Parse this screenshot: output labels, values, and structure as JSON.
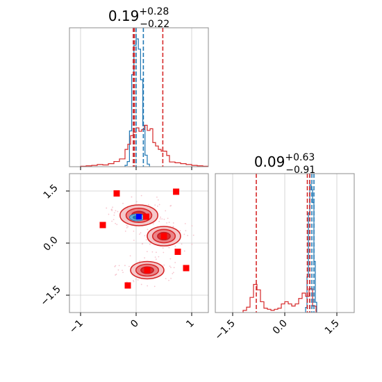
{
  "chart_data": [
    {
      "type": "histogram",
      "panel": "top-left",
      "title_main": "0.19",
      "title_sup": "+0.28",
      "title_sub": "−0.22",
      "xlim": [
        -1.2,
        1.3
      ],
      "xticks": [
        -1,
        0,
        1
      ],
      "grid": true,
      "series": [
        {
          "color": "#1f77b4",
          "bins": [
            -0.2,
            -0.16,
            -0.12,
            -0.08,
            -0.04,
            0.0,
            0.04,
            0.08,
            0.12,
            0.16,
            0.2,
            0.24
          ],
          "counts": [
            1,
            4,
            28,
            72,
            95,
            100,
            92,
            68,
            32,
            9,
            2
          ],
          "quantiles": [
            -0.05,
            0.0,
            0.13
          ]
        },
        {
          "color": "#d62728",
          "bins": [
            -1.0,
            -0.9,
            -0.8,
            -0.7,
            -0.6,
            -0.5,
            -0.4,
            -0.3,
            -0.2,
            -0.15,
            -0.1,
            -0.05,
            0.0,
            0.05,
            0.1,
            0.15,
            0.2,
            0.25,
            0.3,
            0.35,
            0.4,
            0.45,
            0.5,
            0.55,
            0.6,
            0.7,
            0.8,
            0.9,
            1.0,
            1.1,
            1.2,
            1.3
          ],
          "counts": [
            1,
            2,
            3,
            5,
            4,
            7,
            12,
            18,
            20,
            26,
            36,
            40,
            45,
            41,
            43,
            48,
            42,
            44,
            28,
            24,
            20,
            18,
            18,
            13,
            11,
            9,
            7,
            5,
            3,
            2,
            1
          ],
          "quantiles": [
            -0.03,
            -0.05,
            0.48
          ]
        }
      ]
    },
    {
      "type": "histogram",
      "panel": "bottom-right",
      "title_main": "0.09",
      "title_sup": "+0.63",
      "title_sub": "−0.91",
      "xlim": [
        -2.0,
        2.0
      ],
      "xticks": [
        -1.5,
        0.0,
        1.5
      ],
      "xtick_labels": [
        "−1.5",
        "0.0",
        "1.5"
      ],
      "grid": true,
      "series": [
        {
          "color": "#1f77b4",
          "bins": [
            0.6,
            0.64,
            0.68,
            0.72,
            0.76,
            0.8,
            0.84,
            0.88,
            0.92
          ],
          "counts": [
            4,
            28,
            78,
            100,
            96,
            86,
            40,
            8
          ],
          "quantiles": [
            0.72,
            0.78,
            0.84
          ]
        },
        {
          "color": "#d62728",
          "bins": [
            -1.2,
            -1.1,
            -1.0,
            -0.9,
            -0.8,
            -0.7,
            -0.6,
            -0.5,
            -0.4,
            -0.3,
            -0.2,
            -0.1,
            0.0,
            0.1,
            0.2,
            0.3,
            0.4,
            0.5,
            0.6,
            0.7,
            0.8,
            0.9
          ],
          "counts": [
            2,
            5,
            14,
            26,
            21,
            10,
            4,
            3,
            2,
            3,
            4,
            8,
            10,
            8,
            6,
            8,
            13,
            18,
            15,
            22,
            6
          ],
          "quantiles": [
            -0.82,
            0.65,
            0.72
          ]
        }
      ]
    },
    {
      "type": "contour",
      "panel": "bottom-left",
      "xlim": [
        -1.2,
        1.3
      ],
      "ylim": [
        -2.0,
        2.0
      ],
      "xticks": [
        -1,
        0,
        1
      ],
      "yticks": [
        -1.5,
        0.0,
        1.5
      ],
      "ytick_labels": [
        "−1.5",
        "0.0",
        "1.5"
      ],
      "grid": true,
      "red_blobs": [
        {
          "x": 0.05,
          "y": 0.8,
          "sx": 0.34,
          "sy": 0.3
        },
        {
          "x": 0.5,
          "y": 0.2,
          "sx": 0.3,
          "sy": 0.28
        },
        {
          "x": 0.2,
          "y": -0.78,
          "sx": 0.3,
          "sy": 0.25
        }
      ],
      "blue_blob": {
        "x": 0.02,
        "y": 0.74,
        "sx": 0.14,
        "sy": 0.1
      },
      "red_markers": [
        [
          -0.35,
          1.43
        ],
        [
          0.72,
          1.48
        ],
        [
          -0.6,
          0.52
        ],
        [
          0.18,
          0.76
        ],
        [
          0.5,
          0.2
        ],
        [
          0.75,
          -0.25
        ],
        [
          0.9,
          -0.72
        ],
        [
          0.2,
          -0.78
        ],
        [
          -0.15,
          -1.22
        ]
      ],
      "blue_markers": [
        [
          0.05,
          0.76
        ]
      ]
    }
  ]
}
